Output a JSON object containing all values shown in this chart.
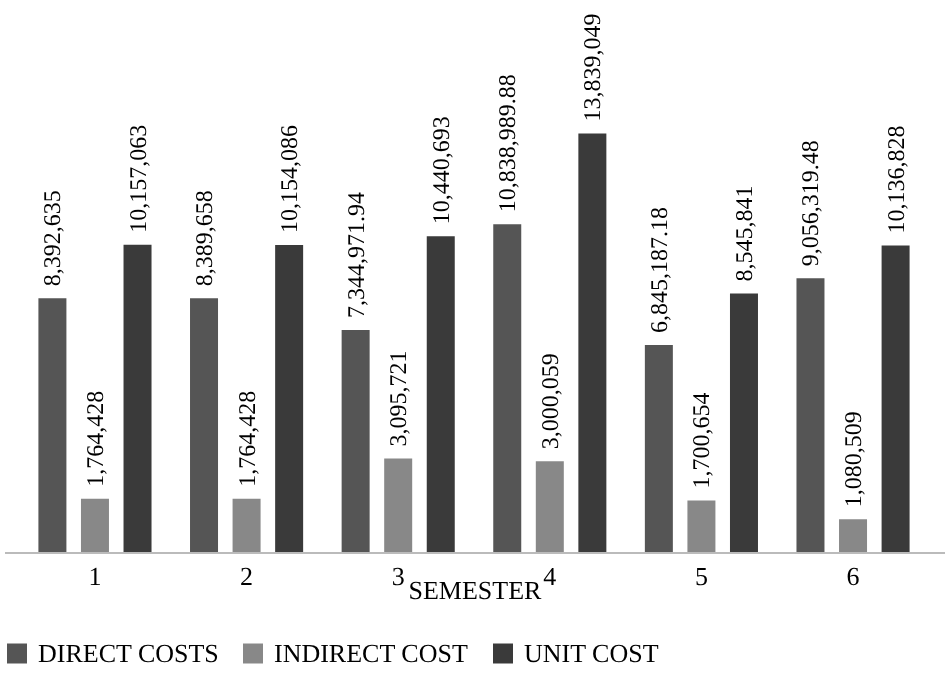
{
  "chart_data": {
    "type": "bar",
    "xlabel": "SEMESTER",
    "categories": [
      "1",
      "2",
      "3",
      "4",
      "5",
      "6"
    ],
    "series": [
      {
        "name": "DIRECT COSTS",
        "color": "#555555",
        "values": [
          8392635,
          8389658,
          7344971.94,
          10838989.88,
          6845187.18,
          9056319.48
        ],
        "value_labels": [
          "8,392,635",
          "8,389,658",
          "7,344,971.94",
          "10,838,989.88",
          "6,845,187.18",
          "9,056,319.48"
        ]
      },
      {
        "name": "INDIRECT COST",
        "color": "#888888",
        "values": [
          1764428,
          1764428,
          3095721,
          3000059,
          1700654,
          1080509
        ],
        "value_labels": [
          "1,764,428",
          "1,764,428",
          "3,095,721",
          "3,000,059",
          "1,700,654",
          "1,080,509"
        ]
      },
      {
        "name": "UNIT COST",
        "color": "#3a3a3a",
        "values": [
          10157063,
          10154086,
          10440693,
          13839049,
          8545841,
          10136828
        ],
        "value_labels": [
          "10,157,063",
          "10,154,086",
          "10,440,693",
          "13,839,049",
          "8,545,841",
          "10,136,828"
        ]
      }
    ],
    "legend": "bottom",
    "grid": false
  }
}
